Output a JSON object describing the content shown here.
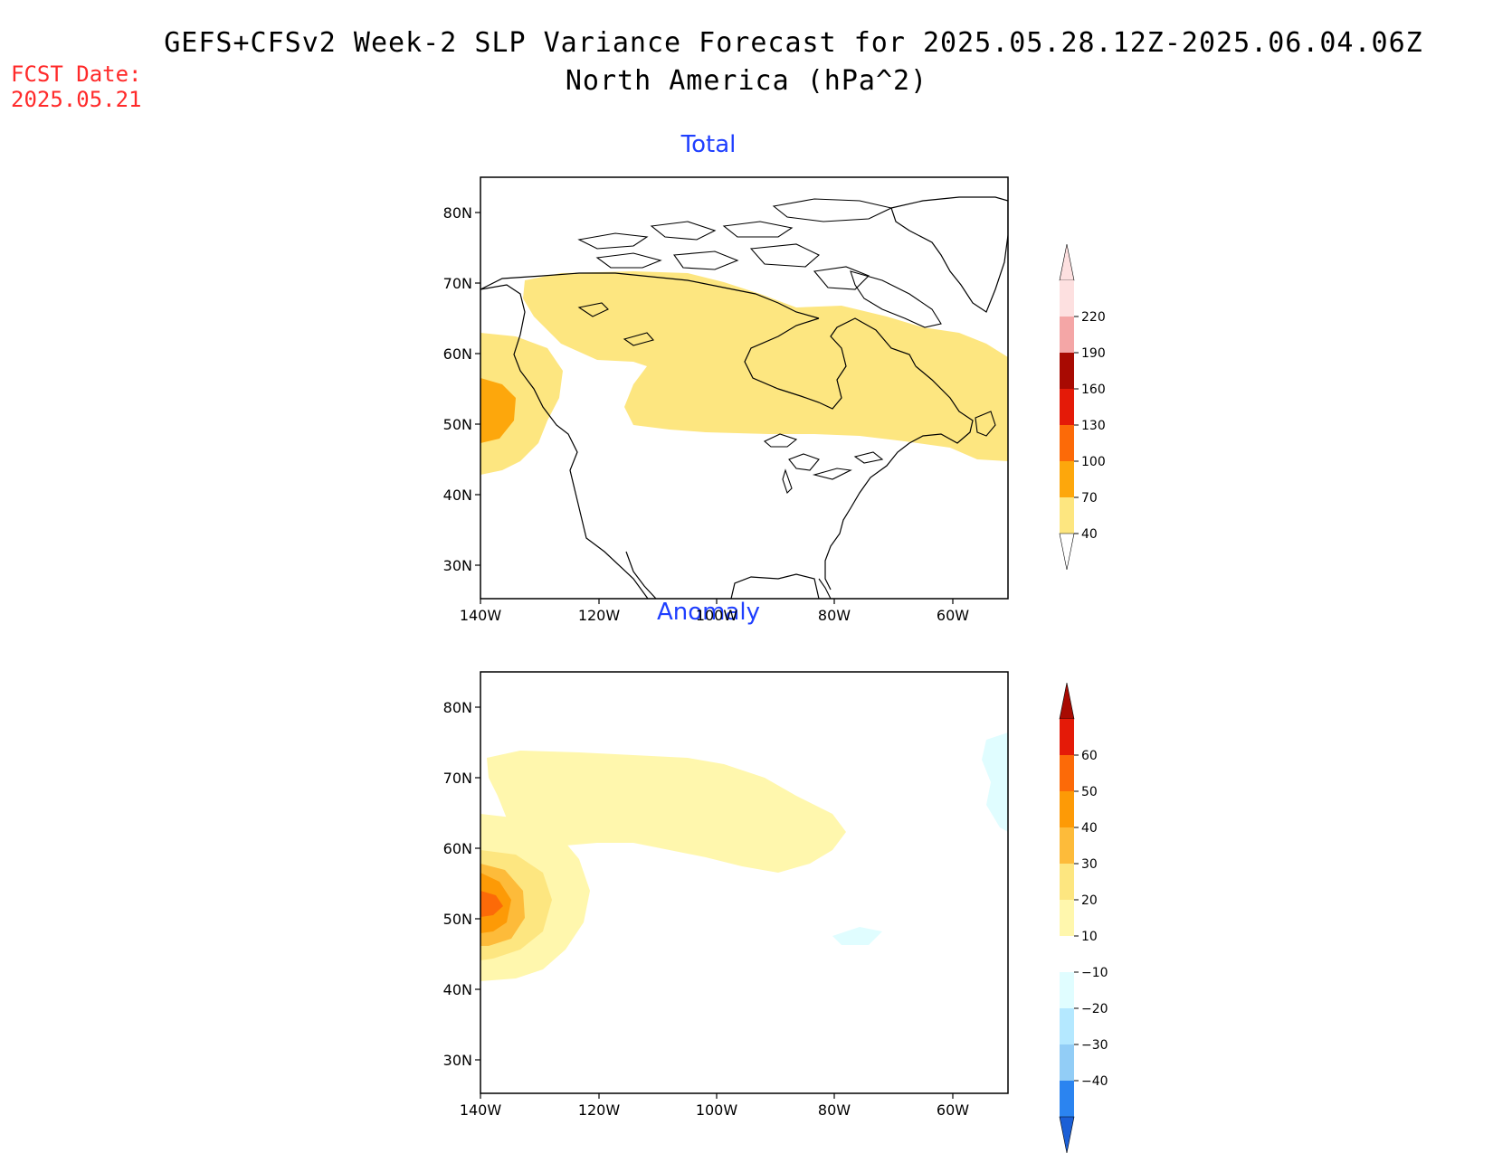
{
  "header": {
    "title": "GEFS+CFSv2 Week-2 SLP Variance Forecast for 2025.05.28.12Z-2025.06.04.06Z",
    "subtitle": "North America (hPa^2)",
    "fcst_label": "FCST Date:",
    "fcst_date": "2025.05.21"
  },
  "colors": {
    "c40": "#fde680",
    "c70": "#fda70c",
    "c100": "#fc6a08",
    "c130": "#e41a08",
    "c160": "#a80a02",
    "c190": "#f4a6a6",
    "c220": "#fde0e0",
    "a10": "#fff7ad",
    "a20": "#fde680",
    "a30": "#fdbb3a",
    "a40": "#fd9a06",
    "a50": "#fc6a08",
    "a60": "#e41a08",
    "a60p": "#a80a02",
    "n10": "#e0fdff",
    "n20": "#b4e8ff",
    "n30": "#92cdf6",
    "n40": "#2b84f0",
    "n40m": "#1b5fd6"
  },
  "axes": {
    "lat_labels": [
      "80N",
      "70N",
      "60N",
      "50N",
      "40N",
      "30N"
    ],
    "lon_labels": [
      "140W",
      "120W",
      "100W",
      "80W",
      "60W"
    ]
  },
  "panels": [
    {
      "title": "Total",
      "colorbar_labels": [
        "220",
        "190",
        "160",
        "130",
        "100",
        "70",
        "40"
      ]
    },
    {
      "title": "Anomaly",
      "colorbar_labels": [
        "60",
        "50",
        "40",
        "30",
        "20",
        "10",
        "−10",
        "−20",
        "−30",
        "−40"
      ]
    }
  ]
}
